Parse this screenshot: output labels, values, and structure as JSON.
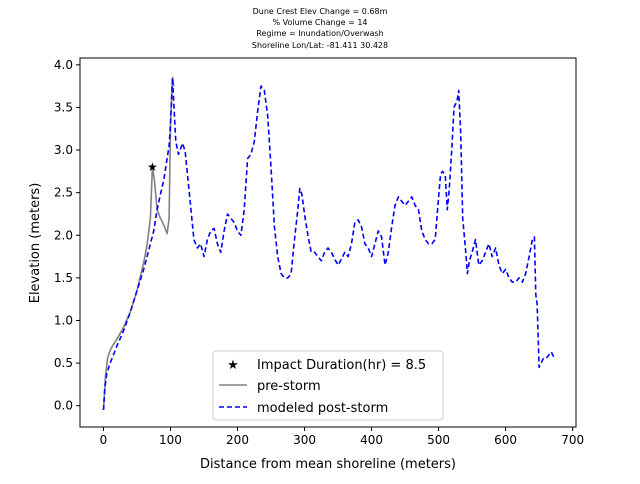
{
  "chart_data": {
    "type": "line",
    "title_lines": [
      "Dune Crest Elev Change = 0.68m",
      "% Volume Change = 14",
      "Regime = Inundation/Overwash",
      "Shoreline Lon/Lat: -81.411 30.428"
    ],
    "xlabel": "Distance from mean shoreline (meters)",
    "ylabel": "Elevation (meters)",
    "xlim": [
      -35,
      705
    ],
    "ylim": [
      -0.25,
      4.08
    ],
    "x_ticks": [
      0,
      100,
      200,
      300,
      400,
      500,
      600,
      700
    ],
    "y_ticks": [
      0.0,
      0.5,
      1.0,
      1.5,
      2.0,
      2.5,
      3.0,
      3.5,
      4.0
    ],
    "x_tick_labels": [
      "0",
      "100",
      "200",
      "300",
      "400",
      "500",
      "600",
      "700"
    ],
    "y_tick_labels": [
      "0.0",
      "0.5",
      "1.0",
      "1.5",
      "2.0",
      "2.5",
      "3.0",
      "3.5",
      "4.0"
    ],
    "grid": false,
    "legend_position": "bottom-center",
    "series": [
      {
        "name": "Impact Duration(hr) = 8.5",
        "kind": "marker",
        "color": "#ff0000",
        "x": [
          73
        ],
        "y": [
          2.8
        ]
      },
      {
        "name": "pre-storm",
        "kind": "line",
        "style": "solid",
        "color": "#808080",
        "x": [
          0,
          3,
          6,
          10,
          15,
          20,
          30,
          40,
          50,
          60,
          65,
          70,
          73,
          76,
          80,
          85,
          90,
          95,
          98,
          100,
          103,
          105
        ],
        "y": [
          -0.05,
          0.35,
          0.55,
          0.65,
          0.72,
          0.78,
          0.92,
          1.1,
          1.35,
          1.68,
          1.88,
          2.2,
          2.8,
          2.65,
          2.3,
          2.2,
          2.12,
          2.02,
          2.2,
          3.3,
          3.85,
          3.75
        ]
      },
      {
        "name": "modeled post-storm",
        "kind": "line",
        "style": "dashed",
        "color": "#0000ff",
        "x": [
          0,
          2,
          5,
          10,
          20,
          30,
          40,
          50,
          60,
          70,
          75,
          80,
          85,
          90,
          95,
          98,
          100,
          103,
          105,
          108,
          112,
          118,
          122,
          128,
          135,
          140,
          145,
          150,
          155,
          160,
          165,
          170,
          175,
          180,
          185,
          190,
          195,
          200,
          205,
          210,
          215,
          220,
          225,
          230,
          235,
          240,
          245,
          250,
          255,
          260,
          265,
          270,
          275,
          280,
          285,
          290,
          293,
          296,
          300,
          305,
          310,
          315,
          320,
          325,
          330,
          335,
          340,
          345,
          350,
          355,
          360,
          365,
          370,
          375,
          380,
          385,
          390,
          395,
          400,
          405,
          410,
          415,
          420,
          425,
          430,
          435,
          440,
          445,
          450,
          455,
          460,
          465,
          470,
          475,
          480,
          485,
          490,
          495,
          500,
          503,
          506,
          510,
          513,
          516,
          520,
          523,
          526,
          528,
          530,
          533,
          536,
          540,
          543,
          546,
          550,
          555,
          560,
          565,
          570,
          575,
          580,
          585,
          590,
          595,
          600,
          605,
          610,
          615,
          620,
          625,
          630,
          635,
          640,
          643,
          645,
          647,
          650,
          653,
          656,
          660,
          665,
          668,
          672
        ],
        "y": [
          -0.05,
          0.2,
          0.38,
          0.5,
          0.7,
          0.88,
          1.1,
          1.35,
          1.6,
          1.9,
          2.05,
          2.3,
          2.48,
          2.65,
          2.9,
          3.05,
          3.3,
          3.85,
          3.55,
          3.1,
          2.95,
          3.08,
          2.98,
          2.5,
          1.95,
          1.85,
          1.9,
          1.75,
          1.95,
          2.05,
          2.08,
          1.9,
          1.8,
          2.05,
          2.25,
          2.2,
          2.15,
          2.05,
          2.0,
          2.3,
          2.9,
          2.95,
          3.1,
          3.45,
          3.75,
          3.7,
          3.4,
          2.8,
          2.1,
          1.75,
          1.55,
          1.5,
          1.5,
          1.55,
          1.95,
          2.3,
          2.55,
          2.48,
          2.25,
          2.0,
          1.8,
          1.8,
          1.75,
          1.7,
          1.8,
          1.85,
          1.8,
          1.72,
          1.65,
          1.72,
          1.8,
          1.75,
          1.9,
          2.15,
          2.18,
          2.1,
          1.9,
          1.85,
          1.75,
          1.9,
          2.05,
          1.98,
          1.65,
          1.8,
          2.1,
          2.35,
          2.45,
          2.4,
          2.35,
          2.4,
          2.45,
          2.35,
          2.3,
          2.05,
          1.95,
          1.9,
          1.9,
          1.95,
          2.45,
          2.72,
          2.75,
          2.7,
          2.3,
          2.55,
          3.05,
          3.5,
          3.55,
          3.6,
          3.7,
          3.2,
          2.2,
          1.85,
          1.55,
          1.7,
          1.8,
          1.95,
          1.65,
          1.7,
          1.8,
          1.9,
          1.75,
          1.85,
          1.65,
          1.55,
          1.6,
          1.5,
          1.45,
          1.45,
          1.5,
          1.45,
          1.55,
          1.75,
          1.95,
          1.98,
          1.3,
          1.2,
          0.45,
          0.5,
          0.55,
          0.55,
          0.6,
          0.63,
          0.57
        ]
      }
    ]
  }
}
